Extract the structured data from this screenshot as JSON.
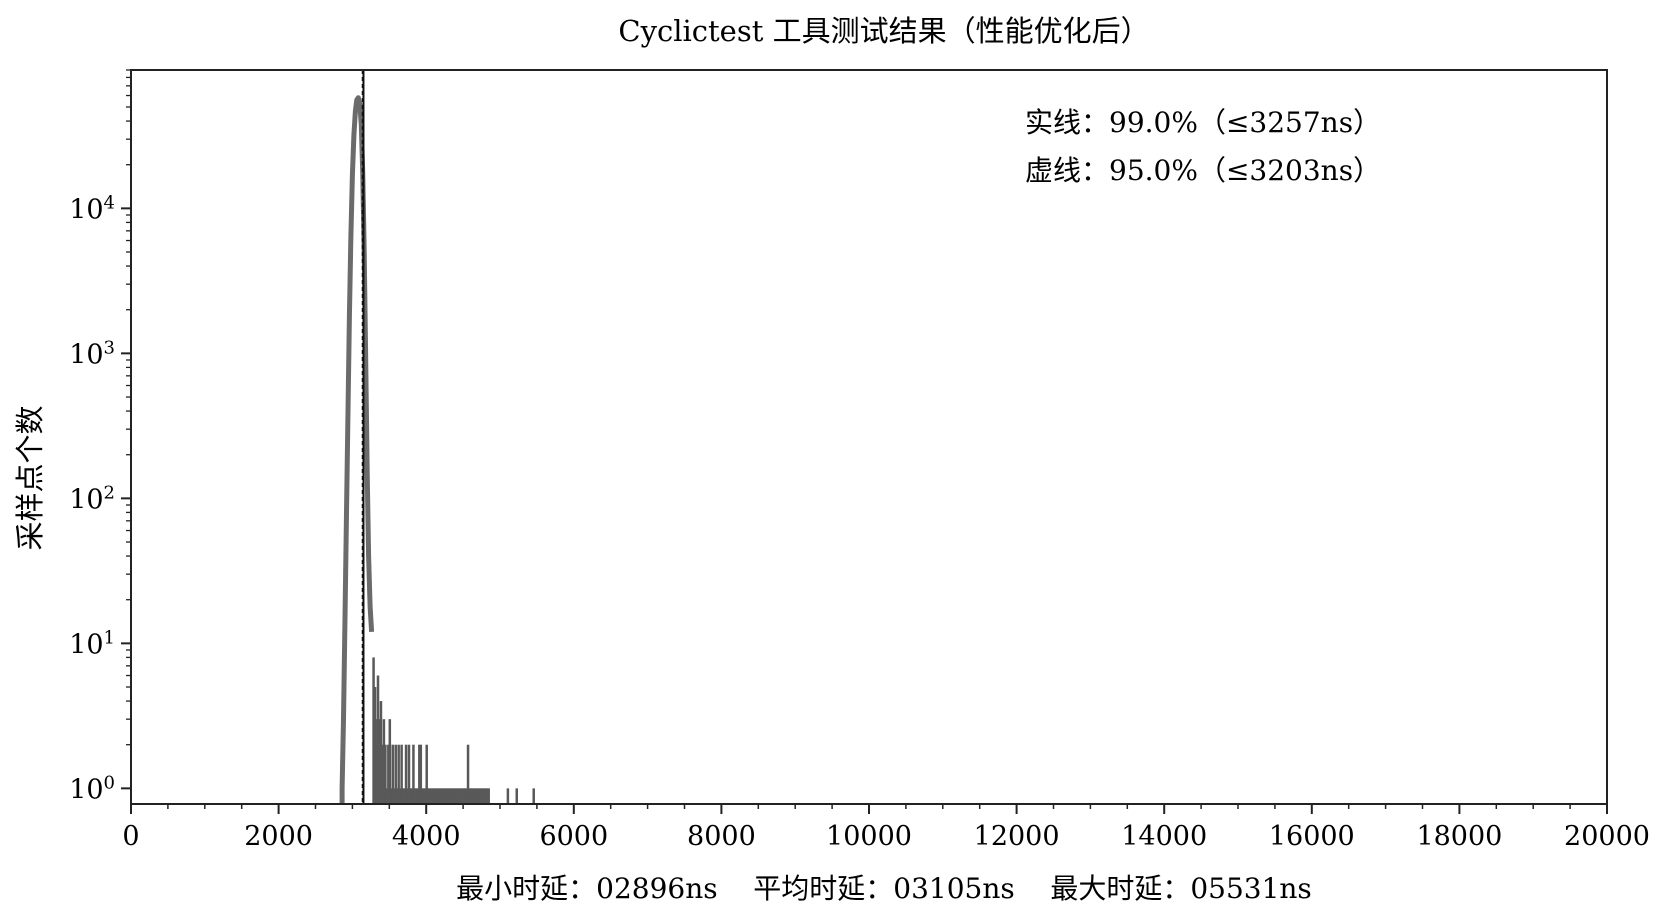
{
  "chart_data": {
    "type": "bar",
    "title": "Cyclictest 工具测试结果（性能优化后）",
    "xlabel": "",
    "ylabel": "采样点个数",
    "xlim": [
      0,
      20000
    ],
    "yscale": "log",
    "ylim": [
      0.78,
      90000
    ],
    "xticks": [
      0,
      2000,
      4000,
      6000,
      8000,
      10000,
      12000,
      14000,
      16000,
      18000,
      20000
    ],
    "xtick_labels": [
      "0",
      "2000",
      "4000",
      "6000",
      "8000",
      "10000",
      "12000",
      "14000",
      "16000",
      "18000",
      "20000"
    ],
    "ytick_exponents": [
      "0",
      "1",
      "2",
      "3",
      "4"
    ],
    "ytick_base": "10",
    "grid": false,
    "curve": {
      "x": [
        2860,
        2880,
        2900,
        2920,
        2940,
        2960,
        2980,
        3000,
        3020,
        3040,
        3060,
        3080,
        3100,
        3120,
        3140,
        3160,
        3180,
        3200,
        3220,
        3240,
        3260
      ],
      "y": [
        1,
        3,
        15,
        80,
        400,
        1800,
        6500,
        17000,
        32000,
        47000,
        56000,
        58000,
        52000,
        38000,
        18000,
        5000,
        900,
        150,
        40,
        18,
        12
      ]
    },
    "tail_bars": [
      {
        "x": 3280,
        "y": 8
      },
      {
        "x": 3300,
        "y": 5
      },
      {
        "x": 3320,
        "y": 3
      },
      {
        "x": 3340,
        "y": 6
      },
      {
        "x": 3360,
        "y": 3
      },
      {
        "x": 3380,
        "y": 4
      },
      {
        "x": 3400,
        "y": 2
      },
      {
        "x": 3420,
        "y": 3
      },
      {
        "x": 3440,
        "y": 2
      },
      {
        "x": 3460,
        "y": 1
      },
      {
        "x": 3480,
        "y": 2
      },
      {
        "x": 3500,
        "y": 3
      },
      {
        "x": 3520,
        "y": 1
      },
      {
        "x": 3540,
        "y": 2
      },
      {
        "x": 3560,
        "y": 1
      },
      {
        "x": 3580,
        "y": 2
      },
      {
        "x": 3600,
        "y": 1
      },
      {
        "x": 3620,
        "y": 2
      },
      {
        "x": 3640,
        "y": 1
      },
      {
        "x": 3660,
        "y": 2
      },
      {
        "x": 3680,
        "y": 1
      },
      {
        "x": 3700,
        "y": 1
      },
      {
        "x": 3720,
        "y": 2
      },
      {
        "x": 3740,
        "y": 1
      },
      {
        "x": 3760,
        "y": 2
      },
      {
        "x": 3780,
        "y": 1
      },
      {
        "x": 3800,
        "y": 1
      },
      {
        "x": 3820,
        "y": 2
      },
      {
        "x": 3840,
        "y": 1
      },
      {
        "x": 3860,
        "y": 1
      },
      {
        "x": 3880,
        "y": 1
      },
      {
        "x": 3900,
        "y": 2
      },
      {
        "x": 3920,
        "y": 2
      },
      {
        "x": 3940,
        "y": 1
      },
      {
        "x": 3960,
        "y": 1
      },
      {
        "x": 3980,
        "y": 1
      },
      {
        "x": 4000,
        "y": 2
      },
      {
        "x": 4020,
        "y": 1
      },
      {
        "x": 4040,
        "y": 1
      },
      {
        "x": 4060,
        "y": 1
      },
      {
        "x": 4080,
        "y": 1
      },
      {
        "x": 4100,
        "y": 1
      },
      {
        "x": 4120,
        "y": 1
      },
      {
        "x": 4140,
        "y": 1
      },
      {
        "x": 4160,
        "y": 1
      },
      {
        "x": 4180,
        "y": 1
      },
      {
        "x": 4200,
        "y": 1
      },
      {
        "x": 4220,
        "y": 1
      },
      {
        "x": 4240,
        "y": 1
      },
      {
        "x": 4260,
        "y": 1
      },
      {
        "x": 4280,
        "y": 1
      },
      {
        "x": 4300,
        "y": 1
      },
      {
        "x": 4320,
        "y": 1
      },
      {
        "x": 4340,
        "y": 1
      },
      {
        "x": 4360,
        "y": 1
      },
      {
        "x": 4380,
        "y": 1
      },
      {
        "x": 4400,
        "y": 1
      },
      {
        "x": 4420,
        "y": 1
      },
      {
        "x": 4440,
        "y": 1
      },
      {
        "x": 4460,
        "y": 1
      },
      {
        "x": 4480,
        "y": 1
      },
      {
        "x": 4500,
        "y": 1
      },
      {
        "x": 4520,
        "y": 1
      },
      {
        "x": 4540,
        "y": 1
      },
      {
        "x": 4560,
        "y": 2
      },
      {
        "x": 4580,
        "y": 1
      },
      {
        "x": 4600,
        "y": 1
      },
      {
        "x": 4620,
        "y": 1
      },
      {
        "x": 4640,
        "y": 1
      },
      {
        "x": 4660,
        "y": 1
      },
      {
        "x": 4680,
        "y": 1
      },
      {
        "x": 4700,
        "y": 1
      },
      {
        "x": 4720,
        "y": 1
      },
      {
        "x": 4740,
        "y": 1
      },
      {
        "x": 4760,
        "y": 1
      },
      {
        "x": 4780,
        "y": 1
      },
      {
        "x": 4800,
        "y": 1
      },
      {
        "x": 4820,
        "y": 1
      },
      {
        "x": 4840,
        "y": 1
      },
      {
        "x": 5100,
        "y": 1
      },
      {
        "x": 5220,
        "y": 1
      },
      {
        "x": 5450,
        "y": 1
      }
    ],
    "vlines": [
      {
        "name": "solid",
        "x": 3150,
        "style": "solid"
      },
      {
        "name": "dashed",
        "x": 3140,
        "style": "dashed"
      }
    ],
    "annotations": [
      "实线：99.0%（≤3257ns）",
      "虚线：95.0%（≤3203ns）"
    ],
    "stats_line": "最小时延：02896ns    平均时延：03105ns    最大时延：05531ns",
    "colors": {
      "bars": "#595959",
      "curve": "#6b6b6b",
      "axis": "#222222",
      "vline": "#111111"
    }
  }
}
